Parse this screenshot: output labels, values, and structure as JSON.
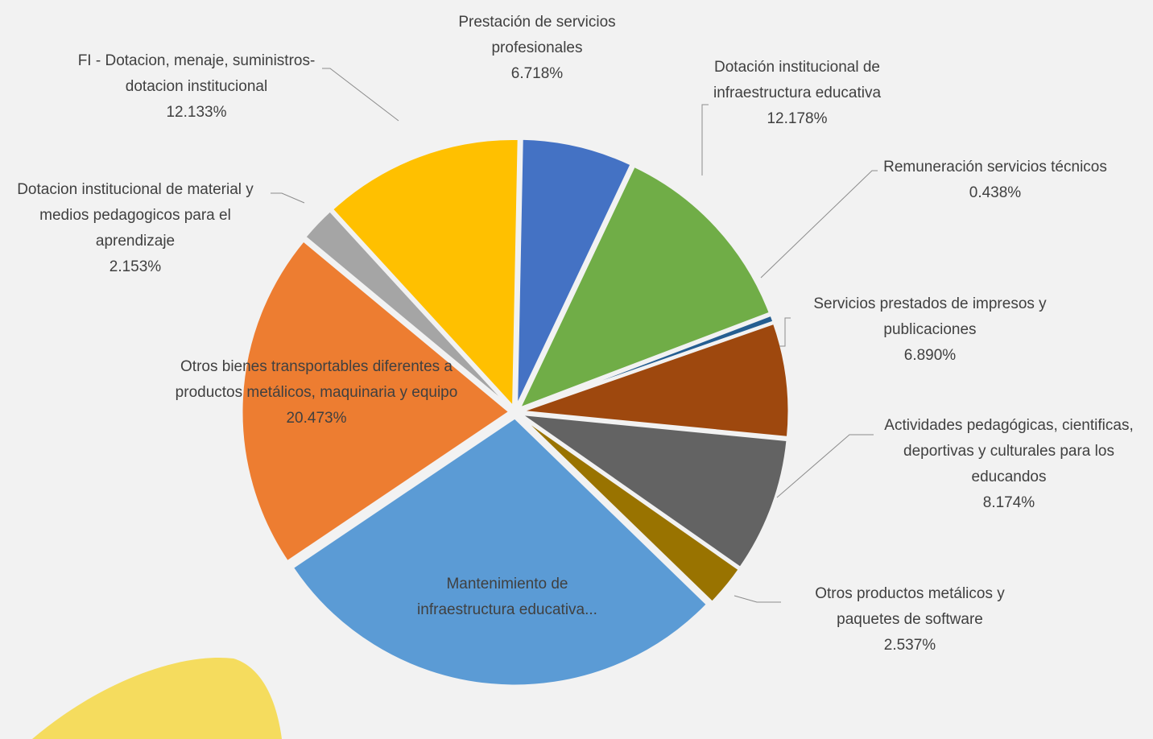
{
  "chart_data": {
    "type": "pie",
    "categories": [
      "Prestación de servicios profesionales",
      "Dotación institucional de infraestructura educativa",
      "Remuneración servicios técnicos",
      "Servicios prestados de impresos y publicaciones",
      "Actividades pedagógicas, cientificas, deportivas y culturales para los educandos",
      "Otros productos metálicos y paquetes de software",
      "Mantenimiento de infraestructura educativa...",
      "Otros bienes transportables diferentes a productos metálicos, maquinaria y equipo",
      "Dotacion institucional de material y medios pedagogicos para el aprendizaje",
      "FI - Dotacion, menaje, suministros- dotacion institucional"
    ],
    "values": [
      6.718,
      12.178,
      0.438,
      6.89,
      8.174,
      2.537,
      28.306,
      20.473,
      2.153,
      12.133
    ],
    "value_labels": [
      "6.718%",
      "12.178%",
      "0.438%",
      "6.890%",
      "8.174%",
      "2.537%",
      null,
      "20.473%",
      "2.153%",
      "12.133%"
    ],
    "colors": [
      "#4472c4",
      "#70ad47",
      "#255e91",
      "#9e480e",
      "#636363",
      "#997300",
      "#5b9bd5",
      "#ed7d31",
      "#a5a5a5",
      "#ffc000"
    ]
  }
}
